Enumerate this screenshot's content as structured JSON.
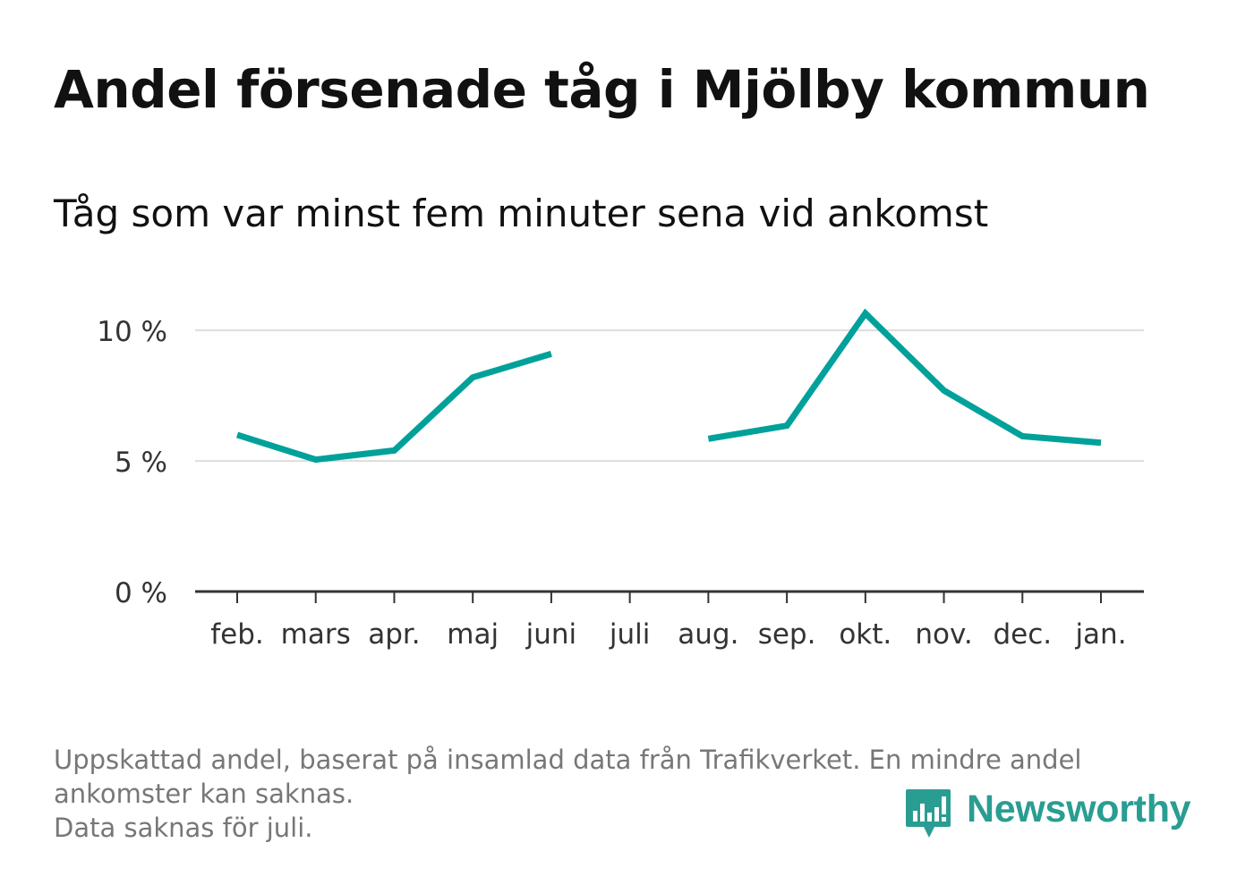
{
  "title": "Andel försenade tåg i Mjölby kommun",
  "subtitle": "Tåg som var minst fem minuter sena vid ankomst",
  "footnote": {
    "line1": "Uppskattad andel, baserat på insamlad data från Trafikverket. En mindre andel",
    "line2": "ankomster kan saknas.",
    "line3": "Data saknas för juli."
  },
  "logo": {
    "text": "Newsworthy",
    "icon": "bar-chart-speech-bubble-icon",
    "color": "#2a9d93"
  },
  "chart_data": {
    "type": "line",
    "categories": [
      "feb.",
      "mars",
      "apr.",
      "maj",
      "juni",
      "juli",
      "aug.",
      "sep.",
      "okt.",
      "nov.",
      "dec.",
      "jan."
    ],
    "series": [
      {
        "values": [
          6.0,
          5.05,
          5.4,
          8.2,
          9.1,
          null,
          5.85,
          6.35,
          10.65,
          7.7,
          5.95,
          5.7
        ],
        "color": "#00a19a"
      }
    ],
    "yticks": [
      {
        "value": 0,
        "label": "0 %"
      },
      {
        "value": 5,
        "label": "5 %"
      },
      {
        "value": 10,
        "label": "10 %"
      }
    ],
    "ylim": [
      0,
      11
    ],
    "grid": true,
    "legend": "none"
  }
}
